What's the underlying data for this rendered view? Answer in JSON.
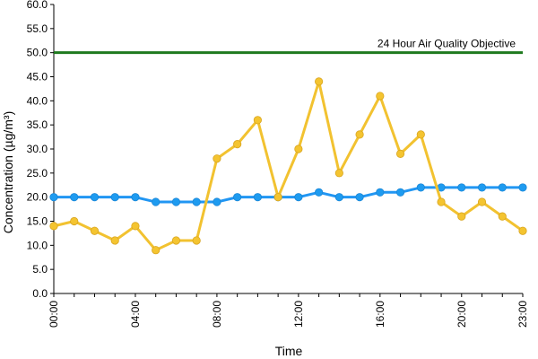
{
  "chart_data": {
    "type": "line",
    "title": "",
    "xlabel": "Time",
    "ylabel": "Concentration (µg/m³)",
    "ylim": [
      0,
      60
    ],
    "y_ticks": [
      "0.0",
      "5.0",
      "10.0",
      "15.0",
      "20.0",
      "25.0",
      "30.0",
      "35.0",
      "40.0",
      "45.0",
      "50.0",
      "55.0",
      "60.0"
    ],
    "x_tick_labels": [
      "00:00",
      "04:00",
      "08:00",
      "12:00",
      "16:00",
      "20:00",
      "23:00"
    ],
    "x_tick_hours": [
      0,
      4,
      8,
      12,
      16,
      20,
      23
    ],
    "x": [
      0,
      1,
      2,
      3,
      4,
      5,
      6,
      7,
      8,
      9,
      10,
      11,
      12,
      13,
      14,
      15,
      16,
      17,
      18,
      19,
      20,
      21,
      22,
      23
    ],
    "grid": false,
    "legend": "none",
    "series": [
      {
        "color": "#2196F3",
        "marker_color": "#1E9BF0",
        "values": [
          20,
          20,
          20,
          20,
          20,
          19,
          19,
          19,
          19,
          20,
          20,
          20,
          20,
          21,
          20,
          20,
          21,
          21,
          22,
          22,
          22,
          22,
          22,
          22
        ]
      },
      {
        "color": "#F2C230",
        "marker_color": "#F4C430",
        "values": [
          14,
          15,
          13,
          11,
          14,
          9,
          11,
          11,
          28,
          31,
          36,
          20,
          30,
          44,
          25,
          33,
          41,
          29,
          33,
          19,
          16,
          19,
          16,
          13
        ]
      }
    ],
    "reference_lines": [
      {
        "label": "24 Hour Air Quality Objective",
        "value": 50,
        "color": "#1E7A1E"
      }
    ]
  }
}
